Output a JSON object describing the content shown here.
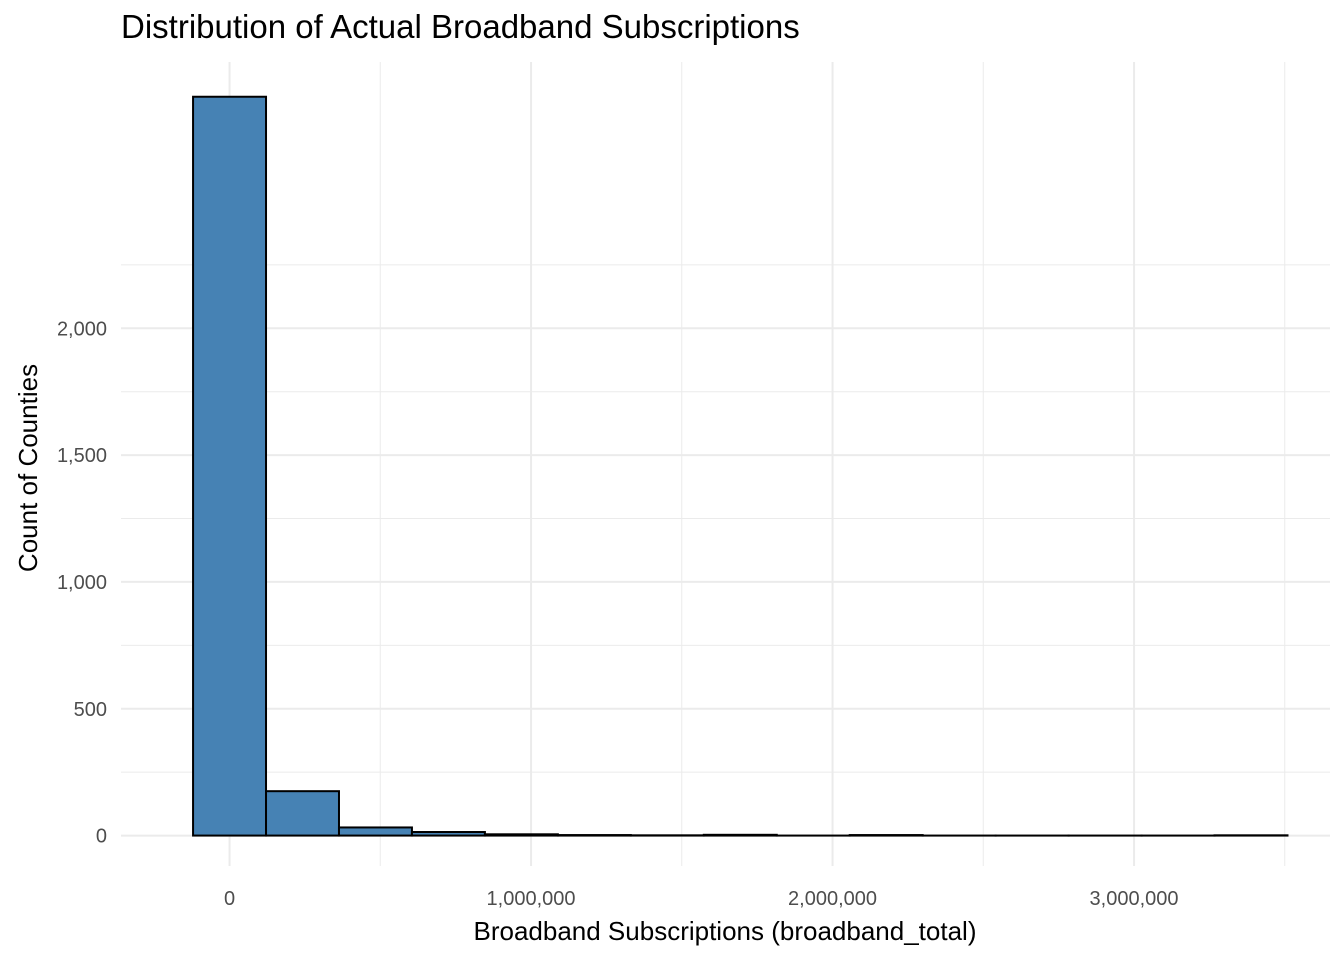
{
  "chart_data": {
    "type": "bar",
    "title": "Distribution of Actual Broadband Subscriptions",
    "xlabel": "Broadband Subscriptions (broadband_total)",
    "ylabel": "Count of Counties",
    "bin_width": 242000,
    "bin_centers": [
      0,
      242000,
      484000,
      726000,
      968000,
      1210000,
      1452000,
      1694000,
      1936000,
      2178000,
      2420000,
      2662000,
      2904000,
      3146000,
      3388000
    ],
    "values": [
      2913,
      175,
      32,
      14,
      5,
      2,
      1,
      3,
      0,
      2,
      0,
      0,
      0,
      0,
      1
    ],
    "xlim": [
      -360000,
      3650000
    ],
    "ylim": [
      -120,
      3050
    ],
    "x_ticks": [
      0,
      1000000,
      2000000,
      3000000
    ],
    "x_tick_labels": [
      "0",
      "1,000,000",
      "2,000,000",
      "3,000,000"
    ],
    "y_ticks": [
      0,
      500,
      1000,
      1500,
      2000
    ],
    "y_tick_labels": [
      "0",
      "500",
      "1,000",
      "1,500",
      "2,000"
    ],
    "bar_fill": "#4682b4",
    "bar_stroke": "#000000",
    "grid": true,
    "grid_color": "#ebebeb",
    "legend": "none"
  }
}
